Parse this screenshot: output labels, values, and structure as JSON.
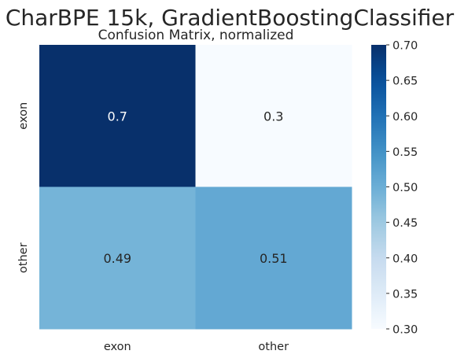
{
  "figure": {
    "title": "CharBPE 15k, GradientBoostingClassifier"
  },
  "chart_data": {
    "type": "heatmap",
    "title": "Confusion Matrix, normalized",
    "xlabel": "",
    "ylabel": "",
    "x_categories": [
      "exon",
      "other"
    ],
    "y_categories": [
      "exon",
      "other"
    ],
    "values": [
      [
        0.7,
        0.3
      ],
      [
        0.49,
        0.51
      ]
    ],
    "cell_labels": [
      [
        "0.7",
        "0.3"
      ],
      [
        "0.49",
        "0.51"
      ]
    ],
    "colormap": "Blues",
    "vmin": 0.3,
    "vmax": 0.7,
    "colorbar_ticks": [
      0.3,
      0.35,
      0.4,
      0.45,
      0.5,
      0.55,
      0.6,
      0.65,
      0.7
    ],
    "colorbar_tick_labels": [
      "0.30",
      "0.35",
      "0.40",
      "0.45",
      "0.50",
      "0.55",
      "0.60",
      "0.65",
      "0.70"
    ],
    "grid": false,
    "legend": "colorbar-right"
  }
}
